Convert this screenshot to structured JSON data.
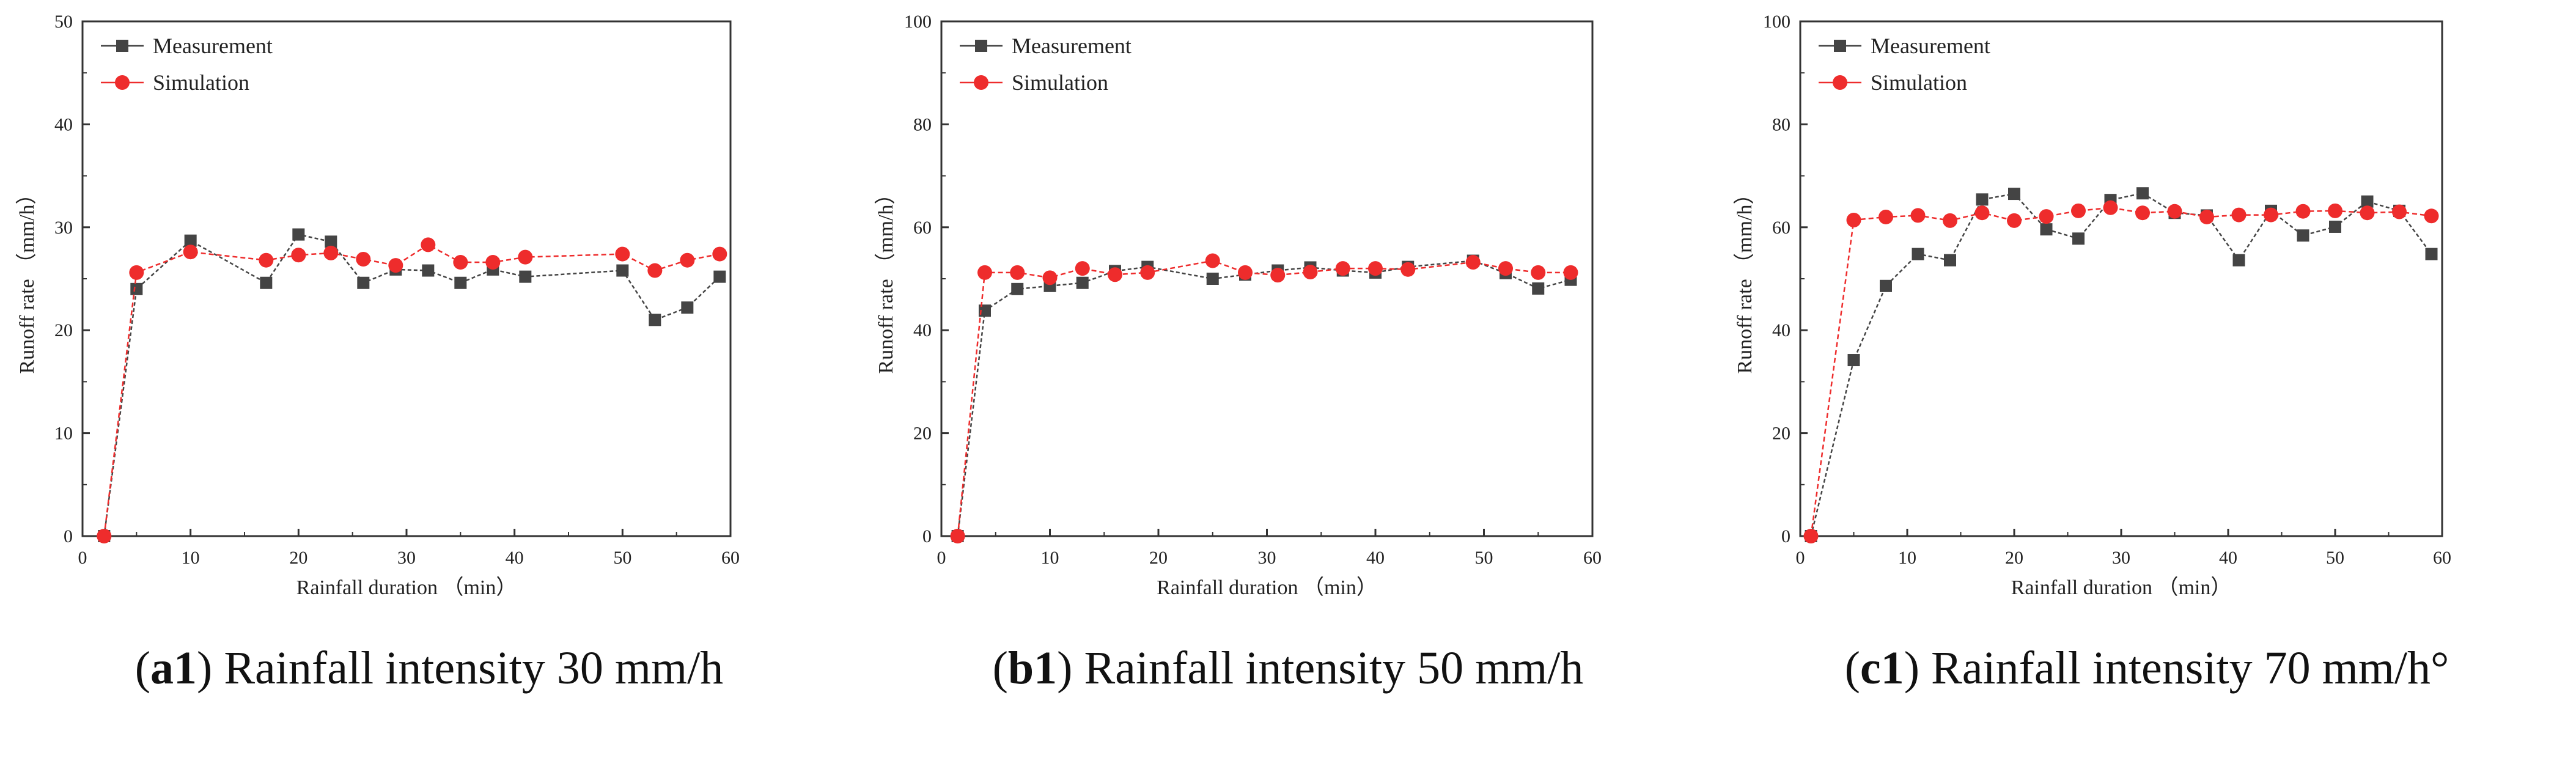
{
  "colors": {
    "measurement": "#444444",
    "simulation": "#ee2c2c",
    "axis": "#333333",
    "plot_bg": "#ffffff"
  },
  "chart_data": [
    {
      "type": "line",
      "panel_label": "a1",
      "caption_text": "Rainfall intensity 30 mm/h",
      "xlabel": "Rainfall duration （min）",
      "ylabel": "Runoff rate （mm/h）",
      "xlim": [
        0,
        60
      ],
      "ylim": [
        0,
        50
      ],
      "xticks": [
        0,
        10,
        20,
        30,
        40,
        50,
        60
      ],
      "yticks": [
        0,
        10,
        20,
        30,
        40,
        50
      ],
      "legend_position": "top-left",
      "series": [
        {
          "name": "Measurement",
          "marker": "square",
          "x": [
            2,
            5,
            10,
            17,
            20,
            23,
            26,
            29,
            32,
            35,
            38,
            41,
            50,
            53,
            56,
            59
          ],
          "y": [
            0,
            24,
            28.7,
            24.6,
            29.3,
            28.6,
            24.6,
            25.9,
            25.8,
            24.6,
            25.9,
            25.2,
            25.8,
            21,
            22.2,
            25.2
          ]
        },
        {
          "name": "Simulation",
          "marker": "circle",
          "x": [
            2,
            5,
            10,
            17,
            20,
            23,
            26,
            29,
            32,
            35,
            38,
            41,
            50,
            53,
            56,
            59
          ],
          "y": [
            0,
            25.6,
            27.6,
            26.8,
            27.3,
            27.5,
            26.9,
            26.3,
            28.3,
            26.6,
            26.6,
            27.1,
            27.4,
            25.8,
            26.8,
            27.4
          ]
        }
      ]
    },
    {
      "type": "line",
      "panel_label": "b1",
      "caption_text": "Rainfall intensity 50 mm/h",
      "xlabel": "Rainfall duration （min）",
      "ylabel": "Runoff rate （mm/h）",
      "xlim": [
        0,
        60
      ],
      "ylim": [
        0,
        100
      ],
      "xticks": [
        0,
        10,
        20,
        30,
        40,
        50,
        60
      ],
      "yticks": [
        0,
        20,
        40,
        60,
        80,
        100
      ],
      "legend_position": "top-left",
      "series": [
        {
          "name": "Measurement",
          "marker": "square",
          "x": [
            1.5,
            4,
            7,
            10,
            13,
            16,
            19,
            25,
            28,
            31,
            34,
            37,
            40,
            43,
            49,
            52,
            55,
            58
          ],
          "y": [
            0,
            43.8,
            48,
            48.6,
            49.2,
            51.5,
            52.3,
            50,
            50.8,
            51.6,
            52.2,
            51.6,
            51.2,
            52.3,
            53.5,
            51.1,
            48.1,
            49.8
          ]
        },
        {
          "name": "Simulation",
          "marker": "circle",
          "x": [
            1.5,
            4,
            7,
            10,
            13,
            16,
            19,
            25,
            28,
            31,
            34,
            37,
            40,
            43,
            49,
            52,
            55,
            58
          ],
          "y": [
            0,
            51.2,
            51.2,
            50.2,
            52,
            50.8,
            51.2,
            53.5,
            51.2,
            50.7,
            51.3,
            52,
            52,
            51.8,
            53.2,
            52,
            51.2,
            51.2
          ]
        }
      ]
    },
    {
      "type": "line",
      "panel_label": "c1",
      "caption_text": "Rainfall intensity 70 mm/h°",
      "xlabel": "Rainfall duration （min）",
      "ylabel": "Runoff rate （mm/h）",
      "xlim": [
        0,
        60
      ],
      "ylim": [
        0,
        100
      ],
      "xticks": [
        0,
        10,
        20,
        30,
        40,
        50,
        60
      ],
      "yticks": [
        0,
        20,
        40,
        60,
        80,
        100
      ],
      "legend_position": "top-left",
      "series": [
        {
          "name": "Measurement",
          "marker": "square",
          "x": [
            1,
            5,
            8,
            11,
            14,
            17,
            20,
            23,
            26,
            29,
            32,
            35,
            38,
            41,
            44,
            47,
            50,
            53,
            56,
            59
          ],
          "y": [
            0,
            34.2,
            48.6,
            54.8,
            53.6,
            65.4,
            66.5,
            59.6,
            57.8,
            65.3,
            66.6,
            62.8,
            62.3,
            53.6,
            63.2,
            58.4,
            60.1,
            65,
            63.2,
            54.8
          ]
        },
        {
          "name": "Simulation",
          "marker": "circle",
          "x": [
            1,
            5,
            8,
            11,
            14,
            17,
            20,
            23,
            26,
            29,
            32,
            35,
            38,
            41,
            44,
            47,
            50,
            53,
            56,
            59
          ],
          "y": [
            0,
            61.4,
            62,
            62.3,
            61.3,
            62.8,
            61.3,
            62.1,
            63.2,
            63.8,
            62.8,
            63.1,
            62,
            62.4,
            62.4,
            63.1,
            63.2,
            62.8,
            63,
            62.2
          ]
        }
      ]
    }
  ]
}
